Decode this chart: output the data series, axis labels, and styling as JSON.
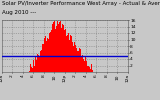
{
  "title": "Solar PV/Inverter Performance West Array - Actual & Average Power Output",
  "subtitle": "Aug 2010 ---",
  "bar_color": "#ff0000",
  "avg_line_color": "#0000cd",
  "avg_line_value": 4.8,
  "background_color": "#c8c8c8",
  "plot_bg_color": "#c8c8c8",
  "grid_color": "#808080",
  "ylim": [
    0,
    16
  ],
  "yticks": [
    2,
    4,
    6,
    8,
    10,
    12,
    14,
    16
  ],
  "ytick_labels": [
    "2",
    "4 ",
    "6 ",
    "8",
    "10",
    "12",
    "14",
    "16"
  ],
  "num_bars": 288,
  "bar_heights": [
    0,
    0,
    0,
    0,
    0,
    0,
    0,
    0,
    0,
    0,
    0,
    0,
    0,
    0,
    0,
    0,
    0,
    0,
    0,
    0,
    0,
    0,
    0,
    0,
    0,
    0,
    0,
    0,
    0,
    0,
    0,
    0,
    0,
    0,
    0,
    0,
    0,
    0,
    0,
    0,
    0,
    0,
    0,
    0,
    0,
    0,
    0,
    0,
    0,
    0,
    0,
    0,
    0,
    0,
    0,
    0,
    0,
    0,
    0,
    0,
    0,
    0,
    0.1,
    0.2,
    0.4,
    0.7,
    1.0,
    1.4,
    1.2,
    1.8,
    2.2,
    1.9,
    2.6,
    3.0,
    2.8,
    3.4,
    3.8,
    3.5,
    4.2,
    4.6,
    4.3,
    5.0,
    5.4,
    5.1,
    5.8,
    6.2,
    5.9,
    6.6,
    7.0,
    6.7,
    7.4,
    7.8,
    7.5,
    8.2,
    8.6,
    8.3,
    9.0,
    9.4,
    9.1,
    9.8,
    10.2,
    9.9,
    10.6,
    11.0,
    10.7,
    11.4,
    11.8,
    11.5,
    12.2,
    12.6,
    12.3,
    13.0,
    13.4,
    13.1,
    13.8,
    14.2,
    13.9,
    14.0,
    14.3,
    14.1,
    14.4,
    14.5,
    14.3,
    14.5,
    14.6,
    14.4,
    14.6,
    14.7,
    14.5,
    14.6,
    14.5,
    14.3,
    14.5,
    14.4,
    14.2,
    14.4,
    14.3,
    14.1,
    14.3,
    14.2,
    14.0,
    13.8,
    13.6,
    13.4,
    13.2,
    13.0,
    12.8,
    12.6,
    12.4,
    12.2,
    12.0,
    11.8,
    11.6,
    11.4,
    11.2,
    11.0,
    10.8,
    10.6,
    10.4,
    10.2,
    10.0,
    9.8,
    9.6,
    9.4,
    9.2,
    9.0,
    8.8,
    8.6,
    8.4,
    8.2,
    8.0,
    7.8,
    7.6,
    7.4,
    7.2,
    7.0,
    6.8,
    6.6,
    6.4,
    6.2,
    6.0,
    5.8,
    5.6,
    5.4,
    5.2,
    5.0,
    4.8,
    4.6,
    4.4,
    4.2,
    4.0,
    3.8,
    3.6,
    3.4,
    3.2,
    3.0,
    2.8,
    2.6,
    2.4,
    2.2,
    2.0,
    1.8,
    1.6,
    1.4,
    1.2,
    1.0,
    0.8,
    0.6,
    0.4,
    0.2,
    0.1,
    0,
    0,
    0,
    0,
    0,
    0,
    0,
    0,
    0,
    0,
    0,
    0,
    0,
    0,
    0,
    0,
    0,
    0,
    0,
    0,
    0,
    0,
    0,
    0,
    0,
    0,
    0,
    0,
    0,
    0,
    0,
    0,
    0,
    0,
    0,
    0,
    0,
    0,
    0,
    0,
    0,
    0,
    0,
    0,
    0,
    0,
    0,
    0,
    0,
    0,
    0,
    0,
    0,
    0,
    0,
    0,
    0,
    0,
    0,
    0,
    0,
    0,
    0,
    0,
    0,
    0,
    0,
    0,
    0,
    0,
    0,
    0,
    0,
    0,
    0,
    0,
    0,
    0
  ],
  "xtick_labels": [
    "12a",
    "2",
    "4",
    "6",
    "8",
    "10",
    "12p",
    "2",
    "4",
    "6",
    "8",
    "10",
    "12a"
  ],
  "xtick_positions": [
    0,
    24,
    48,
    72,
    96,
    120,
    144,
    168,
    192,
    216,
    240,
    264,
    288
  ],
  "title_fontsize": 4.0,
  "tick_fontsize": 3.2,
  "dashed_hlines": [
    2,
    4,
    6,
    8,
    10,
    12,
    14,
    16
  ],
  "dashed_vlines": [
    24,
    48,
    72,
    96,
    120,
    144,
    168,
    192,
    216,
    240,
    264
  ]
}
